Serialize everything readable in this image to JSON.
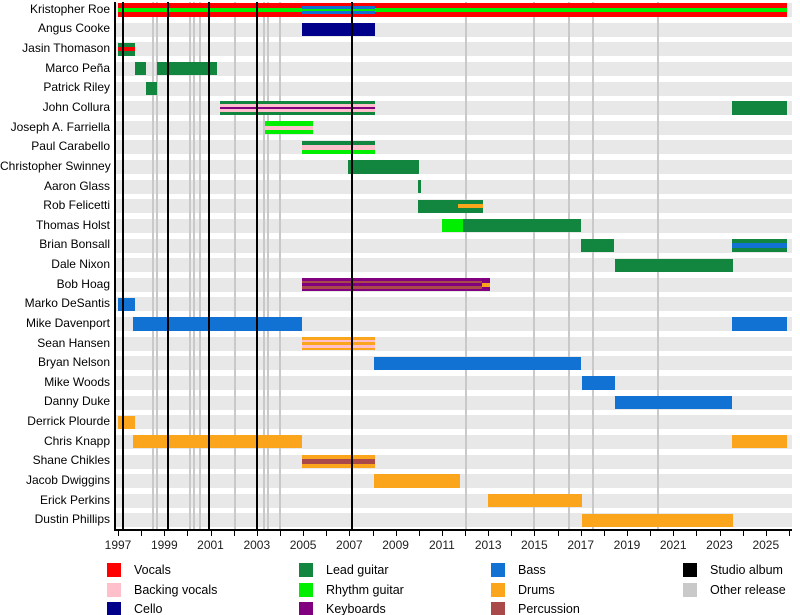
{
  "chart_data": {
    "type": "bar",
    "subtype": "membership-timeline",
    "title": "",
    "xlabel": "",
    "ylabel": "",
    "xlim": [
      1997,
      2026.1
    ],
    "grid": "vertical event lines",
    "legend_position": "bottom",
    "x_axis": {
      "minor_tick_step_years": 1,
      "tick_labels": [
        "1997",
        "1999",
        "2001",
        "2003",
        "2005",
        "2007",
        "2009",
        "2011",
        "2013",
        "2015",
        "2017",
        "2019",
        "2021",
        "2023",
        "2025"
      ],
      "tick_label_years": [
        1997,
        1999,
        2001,
        2003,
        2005,
        2007,
        2009,
        2011,
        2013,
        2015,
        2017,
        2019,
        2021,
        2023,
        2025
      ]
    },
    "colors": {
      "vocals": "#FF0000",
      "backing_vocals": "#FFC0CB",
      "cello": "#00008B",
      "lead_guitar": "#12853E",
      "rhythm_guitar": "#00EE00",
      "keyboards": "#800080",
      "bass": "#1272D4",
      "drums": "#FBA51C",
      "percussion": "#A94949",
      "studio_album": "#000000",
      "other_release": "#C9C9C9"
    },
    "members": [
      {
        "name": "Kristopher Roe",
        "segments": [
          {
            "start": 1997.0,
            "end": 2004.95,
            "stripes": [
              "vocals",
              "rhythm_guitar",
              "vocals"
            ]
          },
          {
            "start": 2004.95,
            "end": 2008.1,
            "stripes": [
              "vocals",
              "bass",
              "rhythm_guitar",
              "bass",
              "vocals"
            ]
          },
          {
            "start": 2008.1,
            "end": 2025.9,
            "stripes": [
              "vocals",
              "rhythm_guitar",
              "vocals"
            ]
          }
        ]
      },
      {
        "name": "Angus Cooke",
        "segments": [
          {
            "start": 2004.95,
            "end": 2008.1,
            "stripes": [
              "cello"
            ]
          }
        ]
      },
      {
        "name": "Jasin Thomason",
        "segments": [
          {
            "start": 1997.0,
            "end": 1997.75,
            "stripes": [
              "lead_guitar",
              "vocals",
              "lead_guitar"
            ]
          }
        ]
      },
      {
        "name": "Marco Peña",
        "segments": [
          {
            "start": 1997.75,
            "end": 1998.2,
            "stripes": [
              "lead_guitar"
            ]
          },
          {
            "start": 1998.7,
            "end": 2001.3,
            "stripes": [
              "lead_guitar"
            ]
          }
        ]
      },
      {
        "name": "Patrick Riley",
        "segments": [
          {
            "start": 1998.2,
            "end": 1998.7,
            "stripes": [
              "lead_guitar"
            ]
          }
        ]
      },
      {
        "name": "John Collura",
        "segments": [
          {
            "start": 2001.4,
            "end": 2008.1,
            "stripes": [
              "lead_guitar",
              "backing_vocals",
              "keyboards",
              "backing_vocals",
              "lead_guitar"
            ]
          },
          {
            "start": 2023.55,
            "end": 2025.9,
            "stripes": [
              "lead_guitar"
            ]
          }
        ]
      },
      {
        "name": "Joseph A. Farriella",
        "segments": [
          {
            "start": 2003.35,
            "end": 2005.45,
            "stripes": [
              "rhythm_guitar",
              "backing_vocals",
              "rhythm_guitar"
            ]
          }
        ]
      },
      {
        "name": "Paul Carabello",
        "segments": [
          {
            "start": 2004.95,
            "end": 2008.1,
            "stripes": [
              "lead_guitar",
              "backing_vocals",
              "rhythm_guitar"
            ]
          }
        ]
      },
      {
        "name": "Christopher Swinney",
        "segments": [
          {
            "start": 2006.95,
            "end": 2010.0,
            "stripes": [
              "lead_guitar"
            ]
          }
        ]
      },
      {
        "name": "Aaron Glass",
        "segments": [
          {
            "start": 2009.95,
            "end": 2010.1,
            "stripes": [
              "lead_guitar"
            ]
          }
        ]
      },
      {
        "name": "Rob Felicetti",
        "segments": [
          {
            "start": 2009.95,
            "end": 2011.7,
            "stripes": [
              "lead_guitar"
            ]
          },
          {
            "start": 2011.7,
            "end": 2012.8,
            "stripes": [
              "lead_guitar",
              "drums",
              "lead_guitar"
            ]
          }
        ]
      },
      {
        "name": "Thomas Holst",
        "segments": [
          {
            "start": 2011.0,
            "end": 2011.9,
            "stripes": [
              "rhythm_guitar"
            ]
          },
          {
            "start": 2011.9,
            "end": 2017.0,
            "stripes": [
              "lead_guitar"
            ]
          }
        ]
      },
      {
        "name": "Brian Bonsall",
        "segments": [
          {
            "start": 2017.0,
            "end": 2018.45,
            "stripes": [
              "lead_guitar"
            ]
          },
          {
            "start": 2023.55,
            "end": 2025.9,
            "stripes": [
              "lead_guitar",
              "bass",
              "lead_guitar"
            ]
          }
        ]
      },
      {
        "name": "Dale Nixon",
        "segments": [
          {
            "start": 2018.5,
            "end": 2023.6,
            "stripes": [
              "lead_guitar"
            ]
          }
        ]
      },
      {
        "name": "Bob Hoag",
        "segments": [
          {
            "start": 2004.95,
            "end": 2012.75,
            "stripes": [
              "keyboards",
              "percussion",
              "keyboards",
              "percussion",
              "keyboards"
            ]
          },
          {
            "start": 2012.75,
            "end": 2013.1,
            "stripes": [
              "keyboards",
              "drums",
              "keyboards"
            ]
          }
        ]
      },
      {
        "name": "Marko DeSantis",
        "segments": [
          {
            "start": 1997.0,
            "end": 1997.75,
            "stripes": [
              "bass"
            ]
          }
        ]
      },
      {
        "name": "Mike Davenport",
        "segments": [
          {
            "start": 1997.65,
            "end": 2004.95,
            "stripes": [
              "bass"
            ]
          },
          {
            "start": 2023.55,
            "end": 2025.9,
            "stripes": [
              "bass"
            ]
          }
        ]
      },
      {
        "name": "Sean Hansen",
        "segments": [
          {
            "start": 2004.95,
            "end": 2008.1,
            "stripes": [
              "drums",
              "backing_vocals",
              "drums",
              "backing_vocals",
              "drums"
            ]
          }
        ]
      },
      {
        "name": "Bryan Nelson",
        "segments": [
          {
            "start": 2008.05,
            "end": 2017.0,
            "stripes": [
              "bass"
            ]
          }
        ]
      },
      {
        "name": "Mike Woods",
        "segments": [
          {
            "start": 2017.05,
            "end": 2018.5,
            "stripes": [
              "bass"
            ]
          }
        ]
      },
      {
        "name": "Danny Duke",
        "segments": [
          {
            "start": 2018.5,
            "end": 2023.55,
            "stripes": [
              "bass"
            ]
          }
        ]
      },
      {
        "name": "Derrick Plourde",
        "segments": [
          {
            "start": 1997.0,
            "end": 1997.75,
            "stripes": [
              "drums"
            ]
          }
        ]
      },
      {
        "name": "Chris Knapp",
        "segments": [
          {
            "start": 1997.65,
            "end": 2004.95,
            "stripes": [
              "drums"
            ]
          },
          {
            "start": 2023.55,
            "end": 2025.9,
            "stripes": [
              "drums"
            ]
          }
        ]
      },
      {
        "name": "Shane Chikles",
        "segments": [
          {
            "start": 2004.95,
            "end": 2008.1,
            "stripes": [
              "drums",
              "percussion",
              "drums"
            ]
          }
        ]
      },
      {
        "name": "Jacob Dwiggins",
        "segments": [
          {
            "start": 2008.05,
            "end": 2011.8,
            "stripes": [
              "drums"
            ]
          }
        ]
      },
      {
        "name": "Erick Perkins",
        "segments": [
          {
            "start": 2013.0,
            "end": 2017.05,
            "stripes": [
              "drums"
            ]
          }
        ]
      },
      {
        "name": "Dustin Phillips",
        "segments": [
          {
            "start": 2017.05,
            "end": 2023.6,
            "stripes": [
              "drums"
            ]
          }
        ]
      }
    ],
    "studio_albums_years": [
      1997.2,
      1999.15,
      2000.95,
      2003.0,
      2007.1
    ],
    "other_releases_years": [
      1998.5,
      1998.7,
      2000.1,
      2000.3,
      2000.55,
      2002.05,
      2003.3,
      2003.5,
      2004.0,
      2012.05,
      2015.0,
      2016.5,
      2017.55,
      2020.35
    ]
  },
  "legend": {
    "columns": [
      [
        {
          "label": "Vocals",
          "color_key": "vocals"
        },
        {
          "label": "Backing vocals",
          "color_key": "backing_vocals"
        },
        {
          "label": "Cello",
          "color_key": "cello"
        }
      ],
      [
        {
          "label": "Lead guitar",
          "color_key": "lead_guitar"
        },
        {
          "label": "Rhythm guitar",
          "color_key": "rhythm_guitar"
        },
        {
          "label": "Keyboards",
          "color_key": "keyboards"
        }
      ],
      [
        {
          "label": "Bass",
          "color_key": "bass"
        },
        {
          "label": "Drums",
          "color_key": "drums"
        },
        {
          "label": "Percussion",
          "color_key": "percussion"
        }
      ],
      [
        {
          "label": "Studio album",
          "color_key": "studio_album"
        },
        {
          "label": "Other release",
          "color_key": "other_release"
        }
      ]
    ]
  }
}
